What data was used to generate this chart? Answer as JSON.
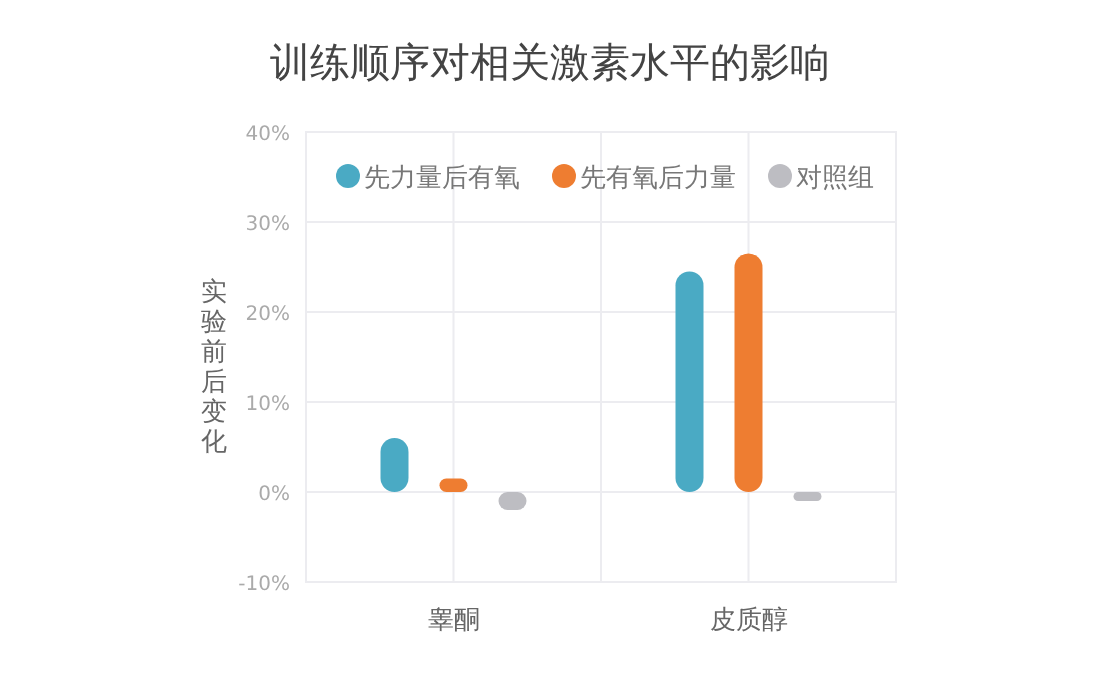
{
  "chart_data": {
    "type": "bar",
    "title": "训练顺序对相关激素水平的影响",
    "ylabel": "实验前后变化",
    "categories": [
      "睾酮",
      "皮质醇"
    ],
    "series": [
      {
        "name": "先力量后有氧",
        "color": "#4aaac4",
        "values": [
          6,
          24.5
        ]
      },
      {
        "name": "先有氧后力量",
        "color": "#ee7d31",
        "values": [
          1.5,
          26.5
        ]
      },
      {
        "name": "对照组",
        "color": "#bdbdc2",
        "values": [
          -2,
          -1
        ]
      }
    ],
    "ylim": [
      -10,
      40
    ],
    "yticks": [
      {
        "value": -10,
        "label": "-10%"
      },
      {
        "value": 0,
        "label": "0%"
      },
      {
        "value": 10,
        "label": "10%"
      },
      {
        "value": 20,
        "label": "20%"
      },
      {
        "value": 30,
        "label": "30%"
      },
      {
        "value": 40,
        "label": "40%"
      }
    ],
    "grid": true,
    "legend": "top"
  }
}
